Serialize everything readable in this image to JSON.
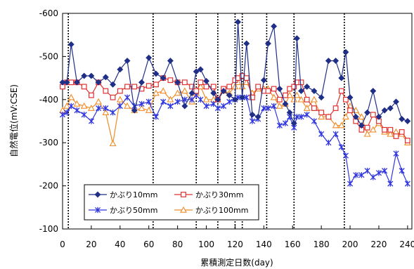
{
  "chart_data": {
    "type": "line",
    "xlabel": "累積測定日数(day)",
    "ylabel": "自然電位(mV:CSE)",
    "xlim": [
      0,
      243
    ],
    "ylim": [
      -600,
      -100
    ],
    "x_ticks": [
      0,
      20,
      40,
      60,
      80,
      100,
      120,
      140,
      160,
      180,
      200,
      220,
      240
    ],
    "y_ticks": [
      -600,
      -500,
      -400,
      -300,
      -200,
      -100
    ],
    "y_tick_labels": [
      "-600",
      "-500",
      "-400",
      "-300",
      "-200",
      "-100"
    ],
    "grid": false,
    "legend_position": "lower-left",
    "vertical_markers": [
      4,
      63,
      93,
      108,
      120,
      125,
      142,
      161,
      196
    ],
    "series": [
      {
        "name": "かぶり10mm",
        "color": "#1F2F87",
        "marker": "diamond",
        "x": [
          0,
          3,
          6,
          10,
          15,
          20,
          25,
          30,
          35,
          40,
          45,
          50,
          55,
          60,
          65,
          70,
          75,
          80,
          85,
          90,
          93,
          96,
          100,
          105,
          108,
          112,
          116,
          120,
          122,
          125,
          128,
          132,
          136,
          140,
          143,
          147,
          151,
          155,
          158,
          161,
          163,
          166,
          170,
          175,
          180,
          185,
          190,
          194,
          197,
          200,
          204,
          208,
          212,
          216,
          220,
          224,
          228,
          232,
          236,
          240
        ],
        "y": [
          -440,
          -440,
          -528,
          -440,
          -455,
          -455,
          -440,
          -452,
          -435,
          -470,
          -490,
          -375,
          -440,
          -497,
          -460,
          -450,
          -490,
          -440,
          -385,
          -415,
          -465,
          -470,
          -443,
          -415,
          -400,
          -420,
          -410,
          -400,
          -580,
          -405,
          -530,
          -365,
          -360,
          -445,
          -530,
          -570,
          -425,
          -390,
          -370,
          -345,
          -542,
          -420,
          -430,
          -420,
          -405,
          -490,
          -490,
          -450,
          -510,
          -405,
          -360,
          -340,
          -370,
          -420,
          -360,
          -375,
          -380,
          -395,
          -355,
          -350
        ]
      },
      {
        "name": "かぶり30mm",
        "color": "#E03030",
        "marker": "square",
        "x": [
          0,
          3,
          6,
          10,
          15,
          20,
          25,
          30,
          35,
          40,
          45,
          50,
          55,
          60,
          65,
          70,
          75,
          80,
          85,
          90,
          93,
          96,
          100,
          105,
          108,
          112,
          116,
          120,
          122,
          125,
          128,
          132,
          136,
          140,
          143,
          147,
          151,
          155,
          158,
          161,
          163,
          166,
          170,
          175,
          180,
          185,
          190,
          194,
          197,
          200,
          204,
          208,
          212,
          216,
          220,
          224,
          228,
          232,
          236,
          240
        ],
        "y": [
          -430,
          -440,
          -440,
          -440,
          -430,
          -410,
          -440,
          -420,
          -405,
          -420,
          -430,
          -430,
          -425,
          -432,
          -435,
          -450,
          -445,
          -440,
          -440,
          -430,
          -420,
          -440,
          -430,
          -430,
          -400,
          -425,
          -430,
          -445,
          -450,
          -455,
          -450,
          -405,
          -430,
          -420,
          -420,
          -425,
          -400,
          -410,
          -425,
          -430,
          -440,
          -440,
          -400,
          -380,
          -370,
          -360,
          -380,
          -420,
          -400,
          -375,
          -350,
          -330,
          -335,
          -365,
          -350,
          -330,
          -330,
          -315,
          -325,
          -305
        ]
      },
      {
        "name": "かぶり50mm",
        "color": "#2F35E0",
        "marker": "asterisk",
        "x": [
          0,
          3,
          6,
          10,
          15,
          20,
          25,
          30,
          35,
          40,
          45,
          50,
          55,
          60,
          65,
          70,
          75,
          80,
          85,
          90,
          93,
          96,
          100,
          105,
          108,
          112,
          116,
          120,
          122,
          125,
          128,
          132,
          136,
          140,
          143,
          147,
          151,
          155,
          158,
          161,
          163,
          166,
          170,
          175,
          180,
          185,
          190,
          194,
          197,
          200,
          204,
          208,
          212,
          216,
          220,
          224,
          228,
          232,
          236,
          240
        ],
        "y": [
          -365,
          -370,
          -385,
          -375,
          -365,
          -350,
          -380,
          -380,
          -370,
          -385,
          -405,
          -385,
          -390,
          -395,
          -360,
          -395,
          -385,
          -395,
          -400,
          -400,
          -410,
          -400,
          -385,
          -390,
          -380,
          -385,
          -395,
          -400,
          -405,
          -405,
          -405,
          -350,
          -355,
          -380,
          -380,
          -385,
          -340,
          -345,
          -360,
          -335,
          -360,
          -360,
          -365,
          -350,
          -320,
          -300,
          -320,
          -290,
          -270,
          -205,
          -225,
          -225,
          -235,
          -220,
          -230,
          -235,
          -205,
          -275,
          -235,
          -205
        ]
      },
      {
        "name": "かぶり100mm",
        "color": "#F08C28",
        "marker": "triangle",
        "x": [
          0,
          3,
          6,
          10,
          15,
          20,
          25,
          30,
          35,
          40,
          45,
          50,
          55,
          60,
          65,
          70,
          75,
          80,
          85,
          90,
          93,
          96,
          100,
          105,
          108,
          112,
          116,
          120,
          122,
          125,
          128,
          132,
          136,
          140,
          143,
          147,
          151,
          155,
          158,
          161,
          163,
          166,
          170,
          175,
          180,
          185,
          190,
          194,
          197,
          200,
          204,
          208,
          212,
          216,
          220,
          224,
          228,
          232,
          236,
          240
        ],
        "y": [
          -375,
          -385,
          -405,
          -390,
          -385,
          -380,
          -395,
          -370,
          -298,
          -400,
          -385,
          -375,
          -380,
          -375,
          -415,
          -420,
          -400,
          -415,
          -420,
          -395,
          -415,
          -430,
          -400,
          -400,
          -400,
          -420,
          -415,
          -430,
          -440,
          -430,
          -440,
          -415,
          -425,
          -425,
          -425,
          -405,
          -385,
          -390,
          -410,
          -400,
          -410,
          -400,
          -380,
          -400,
          -360,
          -360,
          -340,
          -340,
          -360,
          -385,
          -375,
          -360,
          -320,
          -330,
          -345,
          -325,
          -320,
          -325,
          -320,
          -300
        ]
      }
    ]
  }
}
